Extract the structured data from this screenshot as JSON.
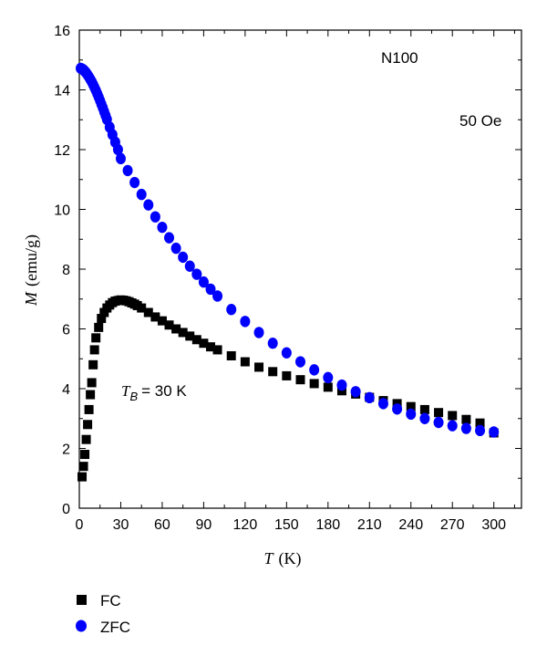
{
  "chart_data": {
    "type": "scatter",
    "xlabel": {
      "symbol": "T",
      "unit": "(K)"
    },
    "ylabel": {
      "symbol": "M",
      "unit": "(emu/g)"
    },
    "xlim": [
      0,
      320
    ],
    "ylim": [
      0,
      16
    ],
    "x_ticks": [
      0,
      30,
      60,
      90,
      120,
      150,
      180,
      210,
      240,
      270,
      300
    ],
    "y_ticks": [
      0,
      2,
      4,
      6,
      8,
      10,
      12,
      14,
      16
    ],
    "grid": false,
    "annotations": {
      "sample": "N100",
      "field": "50 Oe",
      "blocking": {
        "symbol": "T",
        "subscript": "B",
        "value": "= 30 K"
      }
    },
    "legend": {
      "placement": "bottom-left",
      "entries": [
        "FC",
        "ZFC"
      ]
    },
    "colors": {
      "FC": "#000000",
      "ZFC": "#0000ff"
    },
    "series": [
      {
        "name": "FC",
        "marker": "square",
        "x": [
          2,
          3,
          4,
          5,
          6,
          7,
          8,
          9,
          10,
          11,
          12,
          14,
          16,
          18,
          20,
          22,
          24,
          26,
          28,
          30,
          32,
          34,
          36,
          38,
          40,
          42,
          45,
          50,
          55,
          60,
          65,
          70,
          75,
          80,
          85,
          90,
          95,
          100,
          110,
          120,
          130,
          140,
          150,
          160,
          170,
          180,
          190,
          200,
          210,
          220,
          230,
          240,
          250,
          260,
          270,
          280,
          290,
          300
        ],
        "y": [
          1.05,
          1.4,
          1.8,
          2.3,
          2.8,
          3.3,
          3.8,
          4.2,
          4.8,
          5.3,
          5.7,
          6.05,
          6.35,
          6.55,
          6.7,
          6.8,
          6.88,
          6.93,
          6.95,
          6.97,
          6.96,
          6.94,
          6.91,
          6.87,
          6.83,
          6.78,
          6.7,
          6.55,
          6.4,
          6.27,
          6.13,
          6.0,
          5.88,
          5.76,
          5.64,
          5.52,
          5.4,
          5.3,
          5.1,
          4.9,
          4.72,
          4.57,
          4.43,
          4.3,
          4.17,
          4.05,
          3.93,
          3.82,
          3.71,
          3.6,
          3.5,
          3.4,
          3.3,
          3.2,
          3.1,
          2.97,
          2.85,
          2.52
        ]
      },
      {
        "name": "ZFC",
        "marker": "circle",
        "x": [
          1,
          2,
          3,
          4,
          5,
          6,
          7,
          8,
          9,
          10,
          11,
          12,
          13,
          14,
          15,
          16,
          17,
          18,
          19,
          20,
          22,
          24,
          26,
          28,
          30,
          35,
          40,
          45,
          50,
          55,
          60,
          65,
          70,
          75,
          80,
          85,
          90,
          95,
          100,
          110,
          120,
          130,
          140,
          150,
          160,
          170,
          180,
          190,
          200,
          210,
          220,
          230,
          240,
          250,
          260,
          270,
          280,
          290,
          300
        ],
        "y": [
          14.72,
          14.7,
          14.67,
          14.62,
          14.57,
          14.5,
          14.43,
          14.35,
          14.27,
          14.18,
          14.08,
          13.98,
          13.87,
          13.76,
          13.64,
          13.52,
          13.4,
          13.27,
          13.14,
          13.01,
          12.75,
          12.5,
          12.25,
          12.0,
          11.7,
          11.3,
          10.9,
          10.5,
          10.15,
          9.75,
          9.4,
          9.05,
          8.7,
          8.4,
          8.1,
          7.83,
          7.57,
          7.33,
          7.1,
          6.65,
          6.25,
          5.88,
          5.52,
          5.2,
          4.9,
          4.63,
          4.37,
          4.12,
          3.9,
          3.7,
          3.5,
          3.32,
          3.15,
          3.0,
          2.87,
          2.76,
          2.67,
          2.6,
          2.55
        ]
      }
    ]
  }
}
